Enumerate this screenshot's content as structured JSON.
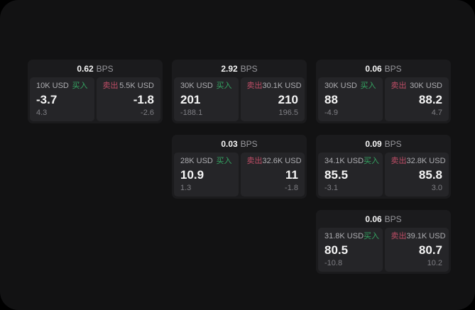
{
  "labels": {
    "bps_unit": "BPS",
    "buy": "买入",
    "sell": "卖出"
  },
  "colors": {
    "screen_bg": "#121213",
    "card_bg": "#1b1b1d",
    "panel_bg": "#252528",
    "text_primary": "#f5f5f5",
    "text_label": "#aeaeb2",
    "text_dim": "#7f7f84",
    "text_unit": "#98989d",
    "buy_green": "#34a562",
    "sell_red": "#bf4d66"
  },
  "cards": [
    {
      "row": 1,
      "col": 1,
      "bps": "0.62",
      "buy": {
        "amount": "10K USD",
        "value": "-3.7",
        "sub": "4.3"
      },
      "sell": {
        "amount": "5.5K USD",
        "value": "-1.8",
        "sub": "-2.6"
      }
    },
    {
      "row": 1,
      "col": 2,
      "bps": "2.92",
      "buy": {
        "amount": "30K USD",
        "value": "201",
        "sub": "-188.1"
      },
      "sell": {
        "amount": "30.1K USD",
        "value": "210",
        "sub": "196.5"
      }
    },
    {
      "row": 1,
      "col": 3,
      "bps": "0.06",
      "buy": {
        "amount": "30K USD",
        "value": "88",
        "sub": "-4.9"
      },
      "sell": {
        "amount": "30K USD",
        "value": "88.2",
        "sub": "4.7"
      }
    },
    {
      "row": 2,
      "col": 2,
      "bps": "0.03",
      "buy": {
        "amount": "28K USD",
        "value": "10.9",
        "sub": "1.3"
      },
      "sell": {
        "amount": "32.6K USD",
        "value": "11",
        "sub": "-1.8"
      }
    },
    {
      "row": 2,
      "col": 3,
      "bps": "0.09",
      "buy": {
        "amount": "34.1K USD",
        "value": "85.5",
        "sub": "-3.1"
      },
      "sell": {
        "amount": "32.8K USD",
        "value": "85.8",
        "sub": "3.0"
      }
    },
    {
      "row": 3,
      "col": 3,
      "bps": "0.06",
      "buy": {
        "amount": "31.8K USD",
        "value": "80.5",
        "sub": "-10.8"
      },
      "sell": {
        "amount": "39.1K USD",
        "value": "80.7",
        "sub": "10.2"
      }
    }
  ]
}
